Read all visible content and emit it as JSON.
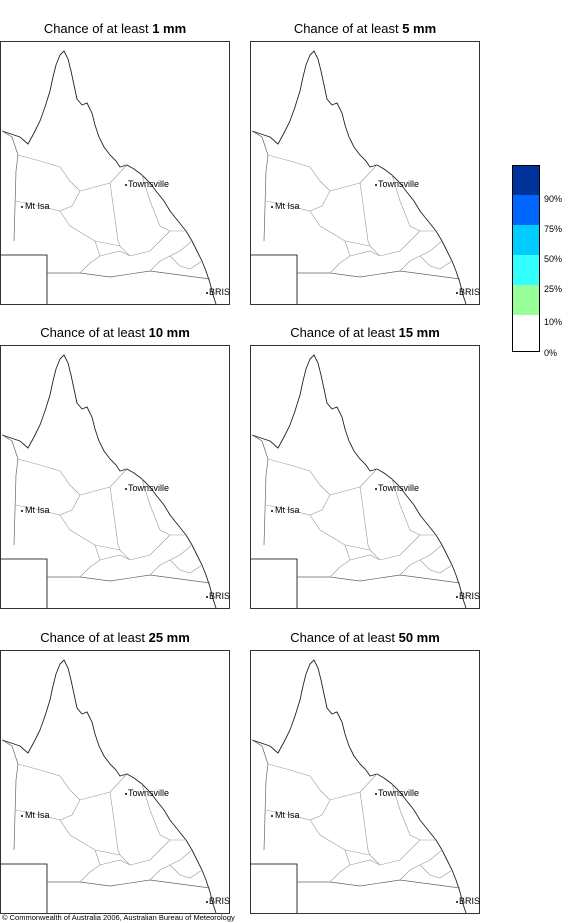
{
  "panels": [
    {
      "title_prefix": "Chance of at least ",
      "threshold": "1 mm"
    },
    {
      "title_prefix": "Chance of at least ",
      "threshold": "5 mm"
    },
    {
      "title_prefix": "Chance of at least ",
      "threshold": "10 mm"
    },
    {
      "title_prefix": "Chance of at least ",
      "threshold": "15 mm"
    },
    {
      "title_prefix": "Chance of at least ",
      "threshold": "25 mm"
    },
    {
      "title_prefix": "Chance of at least ",
      "threshold": "50 mm"
    }
  ],
  "place_labels": {
    "townsville": "Townsville",
    "mt_isa": "Mt Isa",
    "brisbane": "BRIS"
  },
  "legend": {
    "levels": [
      "90%",
      "75%",
      "50%",
      "25%",
      "10%",
      "0%"
    ],
    "colors": [
      "#003399",
      "#0066ff",
      "#00ccff",
      "#33ffff",
      "#99ff99",
      "#ffffff"
    ]
  },
  "copyright": "© Commonwealth of Australia 2006, Australian Bureau of Meteorology"
}
